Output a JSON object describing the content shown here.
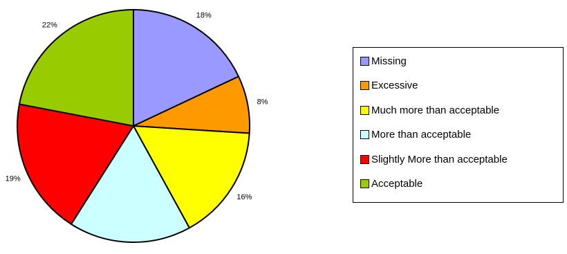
{
  "chart_data": {
    "type": "pie",
    "categories": [
      "Missing",
      "Excessive",
      "Much more than acceptable",
      "More than acceptable",
      "Slightly More than acceptable",
      "Acceptable"
    ],
    "values": [
      18,
      8,
      16,
      17,
      19,
      22
    ],
    "labels": [
      "18%",
      "8%",
      "16%",
      "17%",
      "19%",
      "22%"
    ],
    "colors": [
      "#9999ff",
      "#ff9900",
      "#ffff00",
      "#ccffff",
      "#ff0000",
      "#99cc00"
    ],
    "legend_position": "right"
  }
}
